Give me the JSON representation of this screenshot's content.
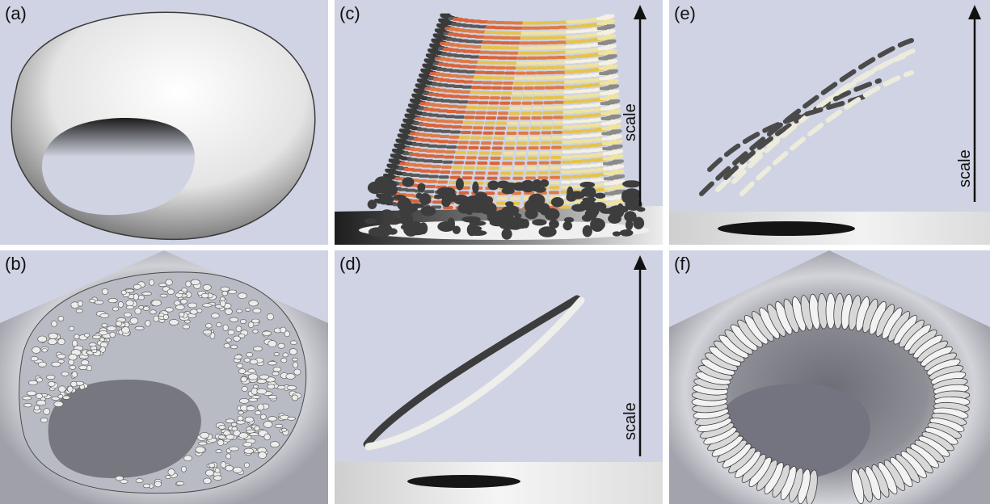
{
  "figure": {
    "panels": [
      {
        "id": "a",
        "label": "(a)"
      },
      {
        "id": "b",
        "label": "(b)"
      },
      {
        "id": "c",
        "label": "(c)",
        "axis_label": "scale"
      },
      {
        "id": "d",
        "label": "(d)",
        "axis_label": "scale"
      },
      {
        "id": "e",
        "label": "(e)",
        "axis_label": "scale"
      },
      {
        "id": "f",
        "label": "(f)"
      }
    ],
    "colors": {
      "background": "#cfd3e3",
      "surface": "#f2f2f2",
      "shadow_dark": "#2a2a2a",
      "floor_gray": "#8a8c95",
      "warm_orange": "#d9643a",
      "warm_yellow": "#e6c34a"
    }
  }
}
